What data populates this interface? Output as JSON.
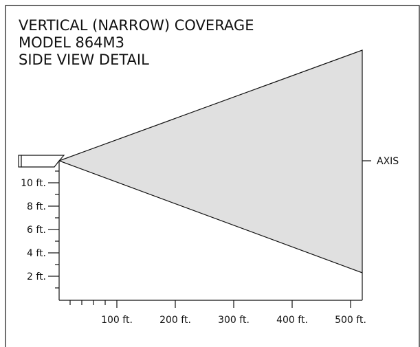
{
  "title": [
    "VERTICAL (NARROW) COVERAGE",
    "MODEL 864M3",
    "SIDE VIEW DETAIL"
  ],
  "axis_label": "AXIS",
  "y_labels": [
    "10 ft.",
    "8 ft.",
    "6 ft.",
    "4 ft.",
    "2 ft."
  ],
  "x_labels": [
    "100 ft.",
    "200 ft.",
    "300 ft.",
    "400 ft.",
    "500 ft."
  ]
}
